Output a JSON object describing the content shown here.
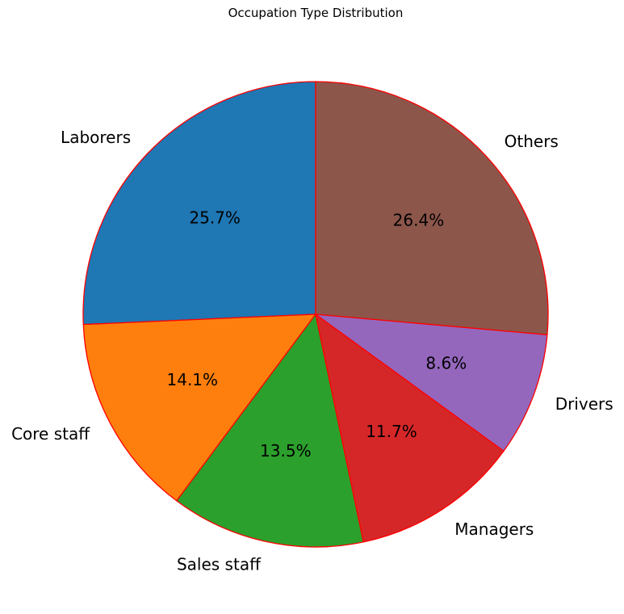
{
  "chart_data": {
    "type": "pie",
    "title": "Occupation Type Distribution",
    "start_angle_deg": 90,
    "direction": "counterclockwise",
    "edge_color": "#ff0000",
    "slices": [
      {
        "label": "Laborers",
        "value": 25.7,
        "pct_text": "25.7%",
        "color": "#1f77b4"
      },
      {
        "label": "Core staff",
        "value": 14.1,
        "pct_text": "14.1%",
        "color": "#ff7f0e"
      },
      {
        "label": "Sales staff",
        "value": 13.5,
        "pct_text": "13.5%",
        "color": "#2ca02c"
      },
      {
        "label": "Managers",
        "value": 11.7,
        "pct_text": "11.7%",
        "color": "#d62728"
      },
      {
        "label": "Drivers",
        "value": 8.6,
        "pct_text": "8.6%",
        "color": "#9467bd"
      },
      {
        "label": "Others",
        "value": 26.4,
        "pct_text": "26.4%",
        "color": "#8c564b"
      }
    ]
  }
}
